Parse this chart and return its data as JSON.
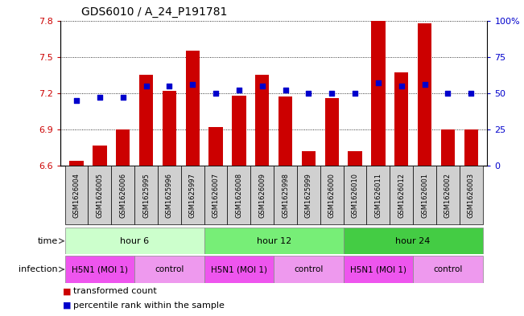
{
  "title": "GDS6010 / A_24_P191781",
  "samples": [
    "GSM1626004",
    "GSM1626005",
    "GSM1626006",
    "GSM1625995",
    "GSM1625996",
    "GSM1625997",
    "GSM1626007",
    "GSM1626008",
    "GSM1626009",
    "GSM1625998",
    "GSM1625999",
    "GSM1626000",
    "GSM1626010",
    "GSM1626011",
    "GSM1626012",
    "GSM1626001",
    "GSM1626002",
    "GSM1626003"
  ],
  "transformed_count": [
    6.64,
    6.77,
    6.9,
    7.35,
    7.22,
    7.55,
    6.92,
    7.18,
    7.35,
    7.17,
    6.72,
    7.16,
    6.72,
    7.8,
    7.37,
    7.78,
    6.9,
    6.9
  ],
  "percentile_rank": [
    45,
    47,
    47,
    55,
    55,
    56,
    50,
    52,
    55,
    52,
    50,
    50,
    50,
    57,
    55,
    56,
    50,
    50
  ],
  "ylim_left": [
    6.6,
    7.8
  ],
  "ylim_right": [
    0,
    100
  ],
  "yticks_left": [
    6.6,
    6.9,
    7.2,
    7.5,
    7.8
  ],
  "yticks_right": [
    0,
    25,
    50,
    75,
    100
  ],
  "ytick_labels_left": [
    "6.6",
    "6.9",
    "7.2",
    "7.5",
    "7.8"
  ],
  "ytick_labels_right": [
    "0",
    "25",
    "50",
    "75",
    "100%"
  ],
  "bar_color": "#cc0000",
  "dot_color": "#0000cc",
  "bar_width": 0.6,
  "time_groups": [
    {
      "label": "hour 6",
      "start": 0,
      "end": 5,
      "color": "#ccffcc"
    },
    {
      "label": "hour 12",
      "start": 6,
      "end": 11,
      "color": "#77ee77"
    },
    {
      "label": "hour 24",
      "start": 12,
      "end": 17,
      "color": "#44cc44"
    }
  ],
  "infection_groups": [
    {
      "label": "H5N1 (MOI 1)",
      "start": 0,
      "end": 2,
      "color": "#ee88ee"
    },
    {
      "label": "control",
      "start": 3,
      "end": 5,
      "color": "#ee88ee"
    },
    {
      "label": "H5N1 (MOI 1)",
      "start": 6,
      "end": 8,
      "color": "#ee88ee"
    },
    {
      "label": "control",
      "start": 9,
      "end": 11,
      "color": "#ee88ee"
    },
    {
      "label": "H5N1 (MOI 1)",
      "start": 12,
      "end": 14,
      "color": "#ee88ee"
    },
    {
      "label": "control",
      "start": 15,
      "end": 17,
      "color": "#ee88ee"
    }
  ],
  "legend_items": [
    {
      "label": "transformed count",
      "color": "#cc0000"
    },
    {
      "label": "percentile rank within the sample",
      "color": "#0000cc"
    }
  ],
  "grid_color": "black",
  "left_label_color": "#cc0000",
  "right_label_color": "#0000cc"
}
